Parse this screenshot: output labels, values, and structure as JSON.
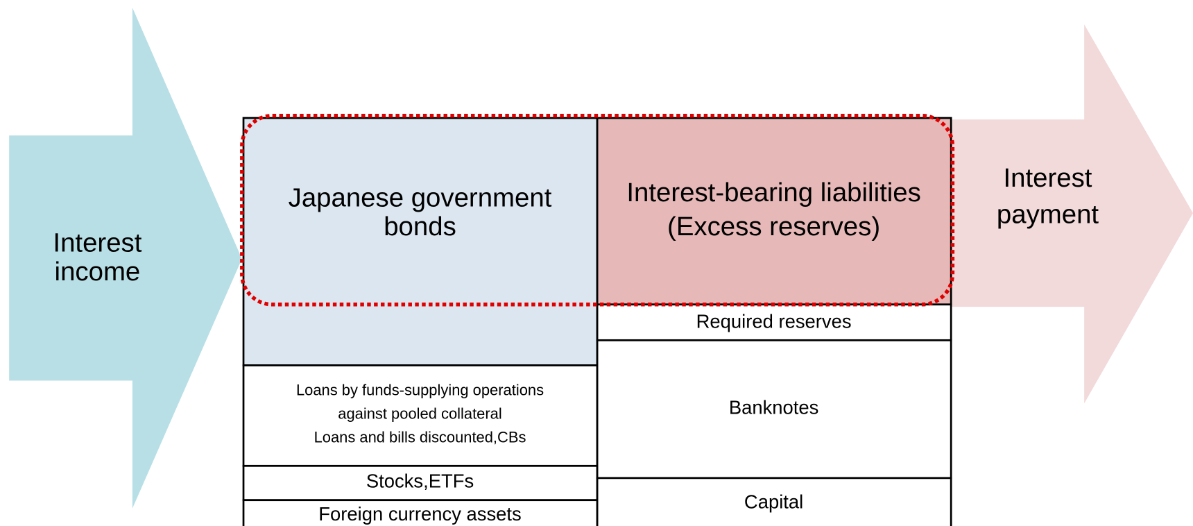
{
  "income_arrow": {
    "label": [
      "Interest",
      "income"
    ]
  },
  "payment_arrow": {
    "label": [
      "Interest",
      "payment"
    ]
  },
  "assets": [
    {
      "label": [
        "Japanese government",
        "bonds"
      ]
    },
    {
      "label": [
        "Loans by funds-supplying operations",
        "against pooled collateral",
        "Loans and bills discounted,CBs"
      ]
    },
    {
      "label": [
        "Stocks,ETFs"
      ]
    },
    {
      "label": [
        "Foreign currency assets"
      ]
    }
  ],
  "liabilities": [
    {
      "label": [
        "Interest-bearing liabilities",
        "(Excess reserves)"
      ]
    },
    {
      "label": [
        "Required reserves"
      ]
    },
    {
      "label": [
        "Banknotes"
      ]
    },
    {
      "label": [
        "Capital"
      ]
    }
  ]
}
